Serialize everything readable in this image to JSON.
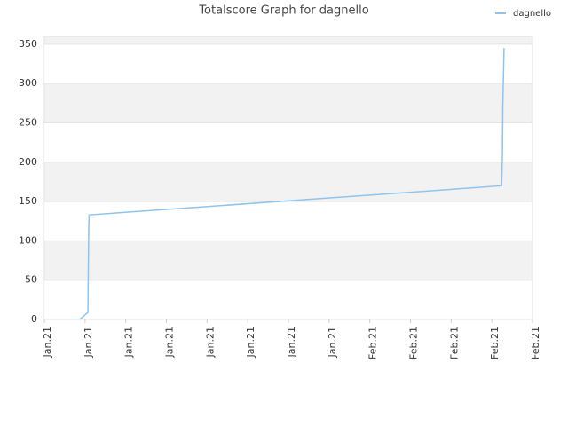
{
  "chart_data": {
    "type": "line",
    "title": "Totalscore Graph for dagnello",
    "x": [
      0.87,
      1.07,
      1.09,
      1.1,
      11.24,
      11.26,
      11.27,
      11.3
    ],
    "series": [
      {
        "name": "dagnello",
        "color": "#8ec4ee",
        "values": [
          0,
          9,
          115,
          133,
          170,
          207,
          272,
          345
        ]
      }
    ],
    "xlim": [
      0,
      12
    ],
    "xticks": [
      {
        "value": 0,
        "label": "Jan.21"
      },
      {
        "value": 1,
        "label": "Jan.21"
      },
      {
        "value": 2,
        "label": "Jan.21"
      },
      {
        "value": 3,
        "label": "Jan.21"
      },
      {
        "value": 4,
        "label": "Jan.21"
      },
      {
        "value": 5,
        "label": "Jan.21"
      },
      {
        "value": 6,
        "label": "Jan.21"
      },
      {
        "value": 7,
        "label": "Jan.21"
      },
      {
        "value": 8,
        "label": "Feb.21"
      },
      {
        "value": 9,
        "label": "Feb.21"
      },
      {
        "value": 10,
        "label": "Feb.21"
      },
      {
        "value": 11,
        "label": "Feb.21"
      },
      {
        "value": 12,
        "label": "Feb.21"
      }
    ],
    "ylim": [
      0,
      360
    ],
    "yticks": [
      0,
      50,
      100,
      150,
      200,
      250,
      300,
      350
    ],
    "grid": true,
    "legend": "top-right"
  }
}
